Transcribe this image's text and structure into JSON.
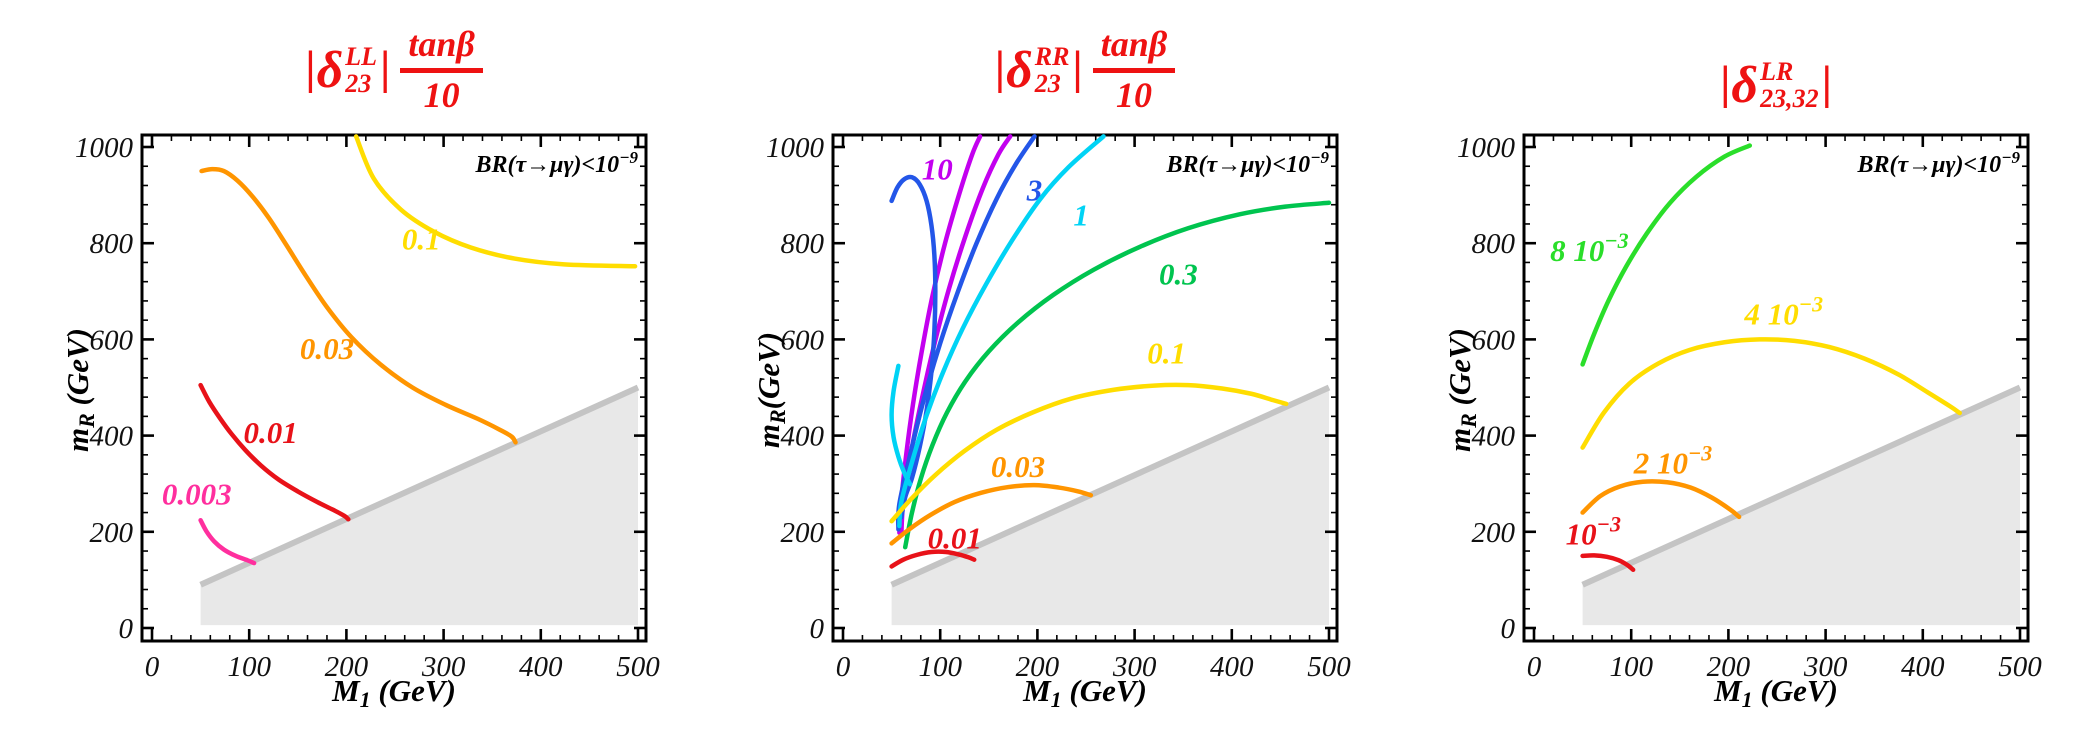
{
  "figure": {
    "description_colors": {
      "title_red": "#ee1212",
      "frame_black": "#000000"
    }
  },
  "chart_data": [
    {
      "type": "contour",
      "title": {
        "prefix": "|",
        "symbol": "δ",
        "sup": "LL",
        "sub": "23",
        "abs_close": "|",
        "frac": {
          "num": "tanβ",
          "den": "10"
        }
      },
      "annotation": {
        "text": "BR(τ→μγ)<10",
        "sup": "−9"
      },
      "xlabel": {
        "main": "M",
        "sub": "1",
        "rest": " (GeV)"
      },
      "ylabel": {
        "main": "m",
        "sub": "R",
        "rest": " (GeV)"
      },
      "x_ticks": [
        0,
        100,
        200,
        300,
        400,
        500
      ],
      "y_ticks": [
        0,
        200,
        400,
        600,
        800,
        1000
      ],
      "x_minor_step": 20,
      "y_minor_step": 40,
      "x_range": [
        0,
        500
      ],
      "y_range": [
        0,
        1000
      ],
      "excluded_region": {
        "fill": "#e8e8e8",
        "edge": "#c4c4c4",
        "points": [
          [
            50,
            6
          ],
          [
            50,
            90
          ],
          [
            500,
            500
          ],
          [
            500,
            6
          ]
        ]
      },
      "contours": [
        {
          "label": "0.1",
          "color": "#ffdd00",
          "label_pos": [
            277,
            810
          ],
          "points": [
            [
              210,
              1022
            ],
            [
              228,
              935
            ],
            [
              256,
              870
            ],
            [
              290,
              824
            ],
            [
              328,
              791
            ],
            [
              373,
              768
            ],
            [
              424,
              756
            ],
            [
              497,
              752
            ]
          ]
        },
        {
          "label": "0.03",
          "color": "#ff9500",
          "label_pos": [
            180,
            582
          ],
          "points": [
            [
              51,
              950
            ],
            [
              62,
              954
            ],
            [
              74,
              950
            ],
            [
              88,
              930
            ],
            [
              103,
              898
            ],
            [
              120,
              853
            ],
            [
              138,
              797
            ],
            [
              158,
              733
            ],
            [
              180,
              667
            ],
            [
              205,
              605
            ],
            [
              235,
              548
            ],
            [
              268,
              500
            ],
            [
              302,
              464
            ],
            [
              335,
              435
            ],
            [
              358,
              412
            ],
            [
              370,
              398
            ],
            [
              374,
              386
            ]
          ]
        },
        {
          "label": "0.01",
          "color": "#e81219",
          "label_pos": [
            122,
            408
          ],
          "points": [
            [
              50,
              505
            ],
            [
              59,
              470
            ],
            [
              70,
              436
            ],
            [
              82,
              403
            ],
            [
              96,
              370
            ],
            [
              112,
              338
            ],
            [
              130,
              309
            ],
            [
              150,
              284
            ],
            [
              170,
              262
            ],
            [
              186,
              246
            ],
            [
              198,
              233
            ],
            [
              202,
              226
            ]
          ]
        },
        {
          "label": "0.003",
          "color": "#ff2f9e",
          "label_pos": [
            46,
            280
          ],
          "points": [
            [
              50,
              224
            ],
            [
              56,
              201
            ],
            [
              64,
              180
            ],
            [
              74,
              163
            ],
            [
              86,
              150
            ],
            [
              98,
              141
            ],
            [
              105,
              135
            ]
          ]
        }
      ]
    },
    {
      "type": "contour",
      "title": {
        "prefix": "|",
        "symbol": "δ",
        "sup": "RR",
        "sub": "23",
        "abs_close": "|",
        "frac": {
          "num": "tanβ",
          "den": "10"
        }
      },
      "annotation": {
        "text": "BR(τ→μγ)<10",
        "sup": "−9"
      },
      "xlabel": {
        "main": "M",
        "sub": "1",
        "rest": " (GeV)"
      },
      "ylabel": {
        "main": "m",
        "sub": "R",
        "rest": "(GeV)"
      },
      "x_ticks": [
        0,
        100,
        200,
        300,
        400,
        500
      ],
      "y_ticks": [
        0,
        200,
        400,
        600,
        800,
        1000
      ],
      "x_minor_step": 20,
      "y_minor_step": 40,
      "x_range": [
        0,
        500
      ],
      "y_range": [
        0,
        1000
      ],
      "excluded_region": {
        "fill": "#e8e8e8",
        "edge": "#c4c4c4",
        "points": [
          [
            50,
            6
          ],
          [
            50,
            90
          ],
          [
            500,
            500
          ],
          [
            500,
            6
          ]
        ]
      },
      "contours": [
        {
          "label": "10",
          "color": "#c300ef",
          "label_pos": [
            97,
            955
          ],
          "points": [
            [
              58,
              198
            ],
            [
              60,
              265
            ],
            [
              65,
              360
            ],
            [
              72,
              465
            ],
            [
              81,
              575
            ],
            [
              92,
              690
            ],
            [
              105,
              800
            ],
            [
              120,
              905
            ],
            [
              133,
              985
            ],
            [
              141,
              1022
            ]
          ]
        },
        {
          "label": "",
          "color": "#c300ef",
          "label_pos": null,
          "points": [
            [
              60,
              193
            ],
            [
              62,
              262
            ],
            [
              70,
              365
            ],
            [
              81,
              475
            ],
            [
              94,
              590
            ],
            [
              109,
              705
            ],
            [
              126,
              815
            ],
            [
              144,
              915
            ],
            [
              160,
              985
            ],
            [
              172,
              1022
            ]
          ]
        },
        {
          "label": "",
          "color": "#2356e8",
          "label_pos": null,
          "points": [
            [
              50,
              888
            ],
            [
              56,
              916
            ],
            [
              63,
              933
            ],
            [
              71,
              937
            ],
            [
              79,
              922
            ],
            [
              86,
              888
            ],
            [
              91,
              837
            ],
            [
              94,
              775
            ],
            [
              95,
              700
            ],
            [
              94,
              617
            ],
            [
              91,
              533
            ],
            [
              86,
              452
            ],
            [
              79,
              377
            ],
            [
              71,
              312
            ],
            [
              64,
              272
            ],
            [
              60,
              230
            ]
          ]
        },
        {
          "label": "3",
          "color": "#2356e8",
          "label_pos": [
            197,
            912
          ],
          "points": [
            [
              57,
              205
            ],
            [
              58,
              258
            ],
            [
              70,
              368
            ],
            [
              84,
              482
            ],
            [
              100,
              592
            ],
            [
              118,
              698
            ],
            [
              137,
              798
            ],
            [
              158,
              892
            ],
            [
              178,
              965
            ],
            [
              197,
              1022
            ]
          ]
        },
        {
          "label": "",
          "color": "#00d3f5",
          "label_pos": null,
          "points": [
            [
              57,
              545
            ],
            [
              52,
              492
            ],
            [
              50,
              443
            ],
            [
              52,
              397
            ],
            [
              57,
              356
            ],
            [
              63,
              323
            ],
            [
              69,
              299
            ]
          ]
        },
        {
          "label": "1",
          "color": "#00d3f5",
          "label_pos": [
            245,
            860
          ],
          "points": [
            [
              58,
              212
            ],
            [
              60,
              262
            ],
            [
              72,
              352
            ],
            [
              86,
              442
            ],
            [
              103,
              532
            ],
            [
              123,
              622
            ],
            [
              147,
              714
            ],
            [
              174,
              806
            ],
            [
              203,
              892
            ],
            [
              232,
              958
            ],
            [
              268,
              1022
            ]
          ]
        },
        {
          "label": "0.3",
          "color": "#00c44f",
          "label_pos": [
            345,
            737
          ],
          "points": [
            [
              64,
              168
            ],
            [
              71,
              240
            ],
            [
              80,
              310
            ],
            [
              92,
              380
            ],
            [
              107,
              448
            ],
            [
              126,
              513
            ],
            [
              150,
              575
            ],
            [
              180,
              635
            ],
            [
              216,
              692
            ],
            [
              258,
              745
            ],
            [
              305,
              792
            ],
            [
              355,
              831
            ],
            [
              408,
              860
            ],
            [
              455,
              876
            ],
            [
              500,
              884
            ]
          ]
        },
        {
          "label": "0.1",
          "color": "#ffdd00",
          "label_pos": [
            333,
            573
          ],
          "points": [
            [
              50,
              222
            ],
            [
              70,
              268
            ],
            [
              95,
              318
            ],
            [
              125,
              368
            ],
            [
              158,
              412
            ],
            [
              195,
              448
            ],
            [
              235,
              477
            ],
            [
              278,
              495
            ],
            [
              320,
              504
            ],
            [
              355,
              505
            ],
            [
              390,
              498
            ],
            [
              420,
              487
            ],
            [
              442,
              474
            ],
            [
              456,
              466
            ]
          ]
        },
        {
          "label": "0.03",
          "color": "#ff9500",
          "label_pos": [
            180,
            337
          ],
          "points": [
            [
              50,
              176
            ],
            [
              68,
              205
            ],
            [
              90,
              235
            ],
            [
              115,
              262
            ],
            [
              142,
              281
            ],
            [
              170,
              293
            ],
            [
              197,
              297
            ],
            [
              222,
              292
            ],
            [
              242,
              284
            ],
            [
              255,
              276
            ]
          ]
        },
        {
          "label": "0.01",
          "color": "#e81219",
          "label_pos": [
            115,
            188
          ],
          "points": [
            [
              50,
              128
            ],
            [
              62,
              142
            ],
            [
              76,
              152
            ],
            [
              91,
              158
            ],
            [
              106,
              158
            ],
            [
              119,
              153
            ],
            [
              129,
              147
            ],
            [
              135,
              142
            ]
          ]
        }
      ]
    },
    {
      "type": "contour",
      "title": {
        "prefix": "|",
        "symbol": "δ",
        "sup": "LR",
        "sub": "23,32",
        "abs_close": "|"
      },
      "annotation": {
        "text": "BR(τ→μγ)<10",
        "sup": "−9"
      },
      "xlabel": {
        "main": "M",
        "sub": "1",
        "rest": " (GeV)"
      },
      "ylabel": {
        "main": "m",
        "sub": "R",
        "rest": " (GeV)"
      },
      "x_ticks": [
        0,
        100,
        200,
        300,
        400,
        500
      ],
      "y_ticks": [
        0,
        200,
        400,
        600,
        800,
        1000
      ],
      "x_minor_step": 20,
      "y_minor_step": 40,
      "x_range": [
        0,
        500
      ],
      "y_range": [
        0,
        1000
      ],
      "excluded_region": {
        "fill": "#e8e8e8",
        "edge": "#c4c4c4",
        "points": [
          [
            50,
            6
          ],
          [
            50,
            90
          ],
          [
            500,
            500
          ],
          [
            500,
            6
          ]
        ]
      },
      "contours": [
        {
          "label": "8 10^−3",
          "color": "#2ade2a",
          "label_pos": [
            57,
            786
          ],
          "points": [
            [
              50,
              548
            ],
            [
              62,
              612
            ],
            [
              77,
              682
            ],
            [
              95,
              752
            ],
            [
              116,
              820
            ],
            [
              140,
              884
            ],
            [
              167,
              938
            ],
            [
              196,
              980
            ],
            [
              222,
              1003
            ]
          ]
        },
        {
          "label": "4 10^−3",
          "color": "#ffdd00",
          "label_pos": [
            257,
            654
          ],
          "points": [
            [
              50,
              375
            ],
            [
              72,
              448
            ],
            [
              98,
              508
            ],
            [
              128,
              550
            ],
            [
              160,
              578
            ],
            [
              196,
              594
            ],
            [
              232,
              600
            ],
            [
              268,
              597
            ],
            [
              304,
              584
            ],
            [
              340,
              560
            ],
            [
              375,
              527
            ],
            [
              405,
              490
            ],
            [
              428,
              461
            ],
            [
              438,
              447
            ]
          ]
        },
        {
          "label": "2 10^−3",
          "color": "#ff9500",
          "label_pos": [
            143,
            344
          ],
          "points": [
            [
              50,
              240
            ],
            [
              68,
              274
            ],
            [
              88,
              294
            ],
            [
              112,
              304
            ],
            [
              137,
              303
            ],
            [
              161,
              292
            ],
            [
              183,
              271
            ],
            [
              202,
              246
            ],
            [
              211,
              231
            ]
          ]
        },
        {
          "label": "10^−3",
          "color": "#e81219",
          "label_pos": [
            61,
            196
          ],
          "points": [
            [
              50,
              150
            ],
            [
              62,
              151
            ],
            [
              75,
              148
            ],
            [
              87,
              141
            ],
            [
              96,
              131
            ],
            [
              102,
              121
            ]
          ]
        }
      ]
    }
  ]
}
